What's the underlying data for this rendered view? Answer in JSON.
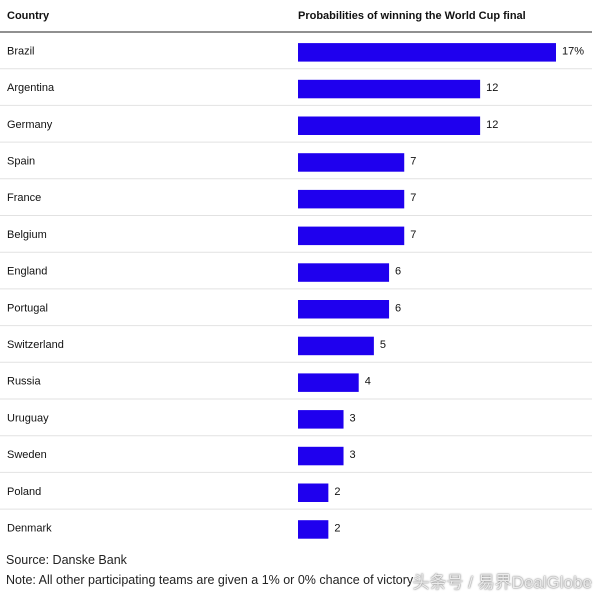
{
  "header": {
    "country_label": "Country",
    "prob_label": "Probabilities of winning the World Cup final"
  },
  "chart_data": {
    "type": "bar",
    "orientation": "horizontal",
    "categories": [
      "Brazil",
      "Argentina",
      "Germany",
      "Spain",
      "France",
      "Belgium",
      "England",
      "Portugal",
      "Switzerland",
      "Russia",
      "Uruguay",
      "Sweden",
      "Poland",
      "Denmark"
    ],
    "values": [
      17,
      12,
      12,
      7,
      7,
      7,
      6,
      6,
      5,
      4,
      3,
      3,
      2,
      2
    ],
    "value_labels": [
      "17%",
      "12",
      "12",
      "7",
      "7",
      "7",
      "6",
      "6",
      "5",
      "4",
      "3",
      "3",
      "2",
      "2"
    ],
    "bar_color": "#1f00ee",
    "xlim": [
      0,
      17
    ]
  },
  "footer": {
    "source": "Source: Danske Bank",
    "note": "Note: All other participating teams are given a 1% or 0% chance of victory"
  },
  "watermark": "头条号 / 易界DealGlobe"
}
